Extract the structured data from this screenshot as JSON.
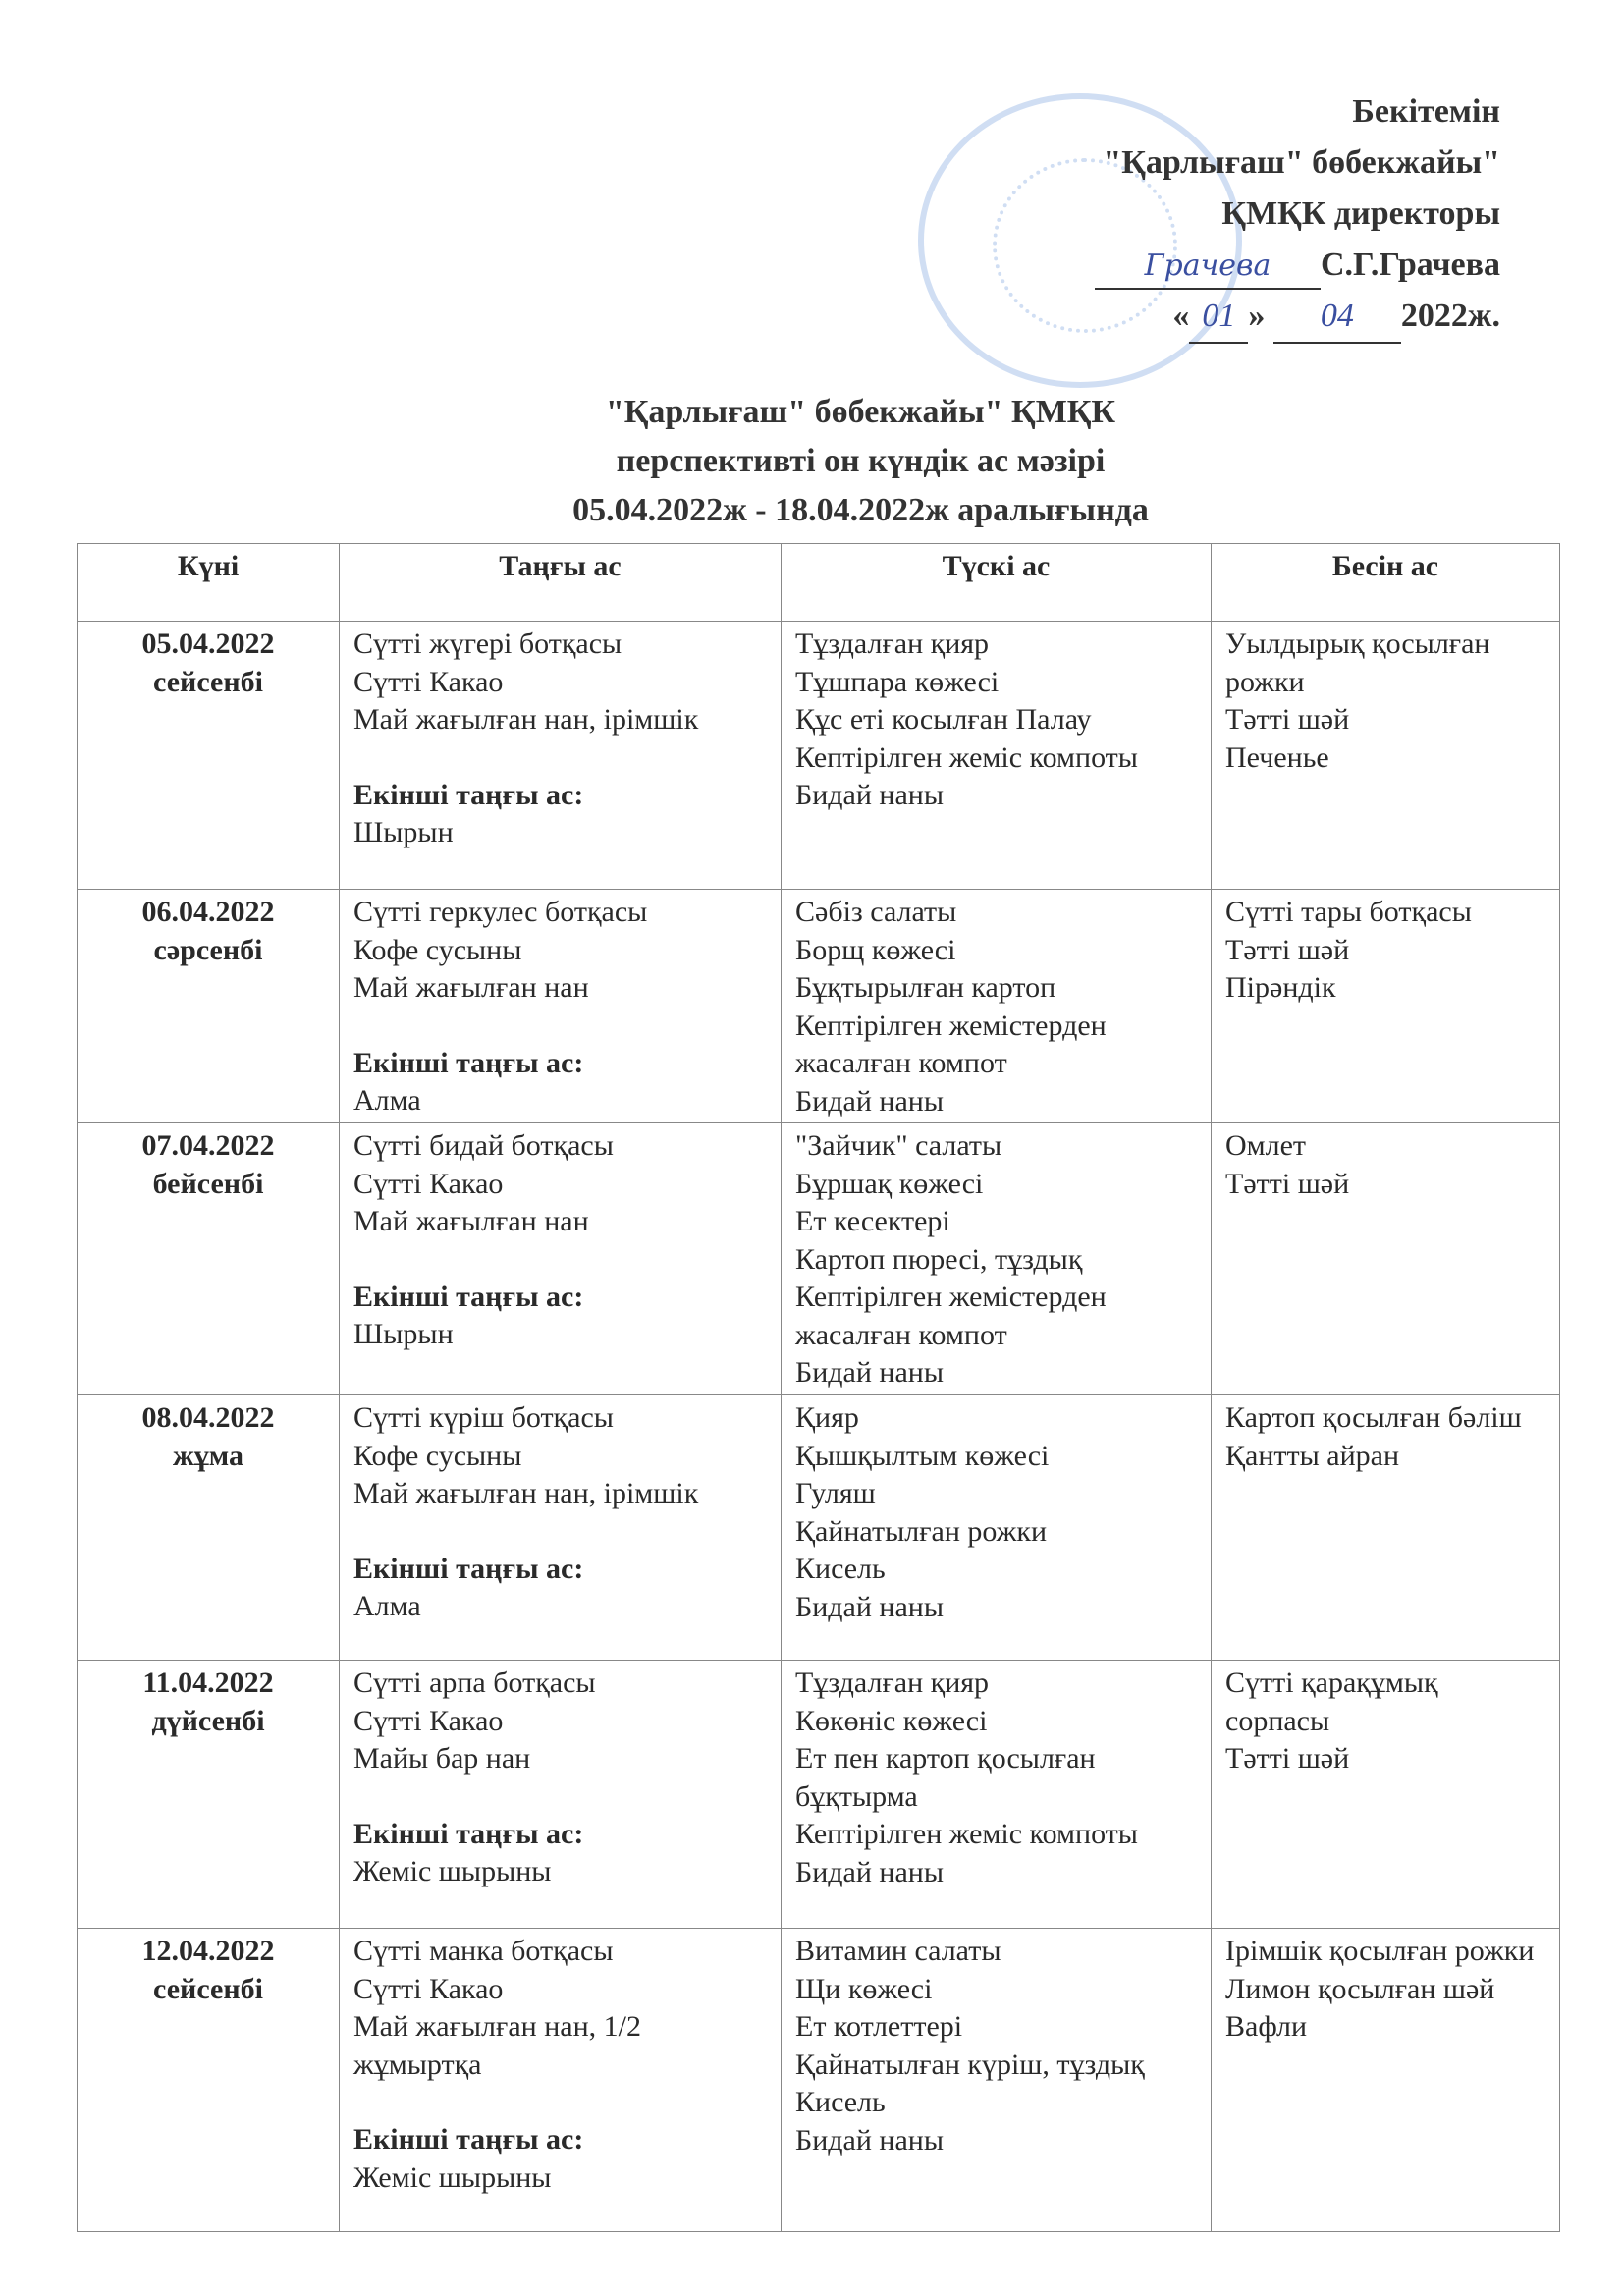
{
  "approval": {
    "line1": "Бекітемін",
    "line2": "\"Қарлығаш\" бөбекжайы\"",
    "line3": "ҚМҚК директоры",
    "signature": "Грачева",
    "name": "С.Г.Грачева",
    "day": "01",
    "month": "04",
    "year": "2022ж.",
    "quote_open": "«",
    "quote_close": "»"
  },
  "title": {
    "line1": "\"Қарлығаш\" бөбекжайы\" ҚМҚК",
    "line2": "перспективті он күндік ас мәзірі",
    "line3": "05.04.2022ж - 18.04.2022ж аралығында"
  },
  "table": {
    "headers": [
      "Күні",
      "Таңғы ас",
      "Түскі ас",
      "Бесін ас"
    ],
    "second_breakfast_label": "Екінші таңғы ас:",
    "rows": [
      {
        "date": "05.04.2022",
        "day": "сейсенбі",
        "breakfast": [
          "Сүтті жүгері ботқасы",
          "Сүтті  Какао",
          "Май жағылған нан, ірімшік"
        ],
        "second": "Шырын",
        "lunch": [
          "Тұздалған қияр",
          "Тұшпара көжесі",
          "Құс еті косылған Палау",
          "Кептірілген жеміс компоты",
          "Бидай наны"
        ],
        "snack": [
          "Уылдырық қосылған рожки",
          "Тәтті шәй",
          "Печенье"
        ]
      },
      {
        "date": "06.04.2022",
        "day": "сәрсенбі",
        "breakfast": [
          "Сүтті геркулес ботқасы",
          "Кофе сусыны",
          "Май жағылған нан"
        ],
        "second": "Алма",
        "lunch": [
          "Сәбіз салаты",
          "Борщ  көжесі",
          "Бұқтырылған картоп",
          "Кептірілген жемістерден жасалған компот",
          "Бидай наны"
        ],
        "snack": [
          "Сүтті тары ботқасы",
          "Тәтті шәй",
          "Пірәндік"
        ]
      },
      {
        "date": "07.04.2022",
        "day": "бейсенбі",
        "breakfast": [
          "Сүтті бидай ботқасы",
          "Сүтті Какао",
          "Май жағылған нан"
        ],
        "second": "Шырын",
        "lunch": [
          "\"Зайчик\" салаты",
          "Бұршақ көжесі",
          "Ет кесектері",
          " Картоп пюресі, тұздық",
          "Кептірілген жемістерден жасалған компот",
          "Бидай наны"
        ],
        "snack": [
          "Омлет",
          "Тәтті шәй"
        ]
      },
      {
        "date": "08.04.2022",
        "day": "жұма",
        "breakfast": [
          "Сүтті күріш ботқасы",
          "Кофе сусыны",
          "Май жағылған нан, ірімшік"
        ],
        "second": "Алма",
        "lunch": [
          "Қияр",
          "Қышқылтым көжесі",
          "Гуляш",
          "Қайнатылған рожки",
          " Кисель",
          "Бидай наны"
        ],
        "snack": [
          "Картоп қосылған бәліш",
          "Қантты айран"
        ]
      },
      {
        "date": "11.04.2022",
        "day": "дүйсенбі",
        "breakfast": [
          "Сүтті арпа ботқасы",
          "Сүтті  Какао",
          "Майы бар нан"
        ],
        "second": "Жеміс шырыны",
        "lunch": [
          "Тұздалған қияр",
          "Көкөніс көжесі",
          "Ет пен картоп қосылған бұқтырма",
          "Кептірілген жеміс компоты",
          "Бидай наны"
        ],
        "snack": [
          "Сүтті қарақұмық сорпасы",
          "Тәтті шәй"
        ]
      },
      {
        "date": "12.04.2022",
        "day": "сейсенбі",
        "breakfast": [
          "Сүтті манка ботқасы",
          "Сүтті Какао",
          "Май жағылған нан, 1/2 жұмыртқа"
        ],
        "second": "Жеміс шырыны",
        "lunch": [
          "Витамин салаты",
          "Щи көжесі",
          "Ет котлеттері",
          "Қайнатылған күріш, тұздық",
          "Кисель",
          "Бидай наны"
        ],
        "snack": [
          "Ірімшік қосылған рожки",
          "Лимон қосылған шәй",
          "Вафли"
        ]
      }
    ]
  }
}
